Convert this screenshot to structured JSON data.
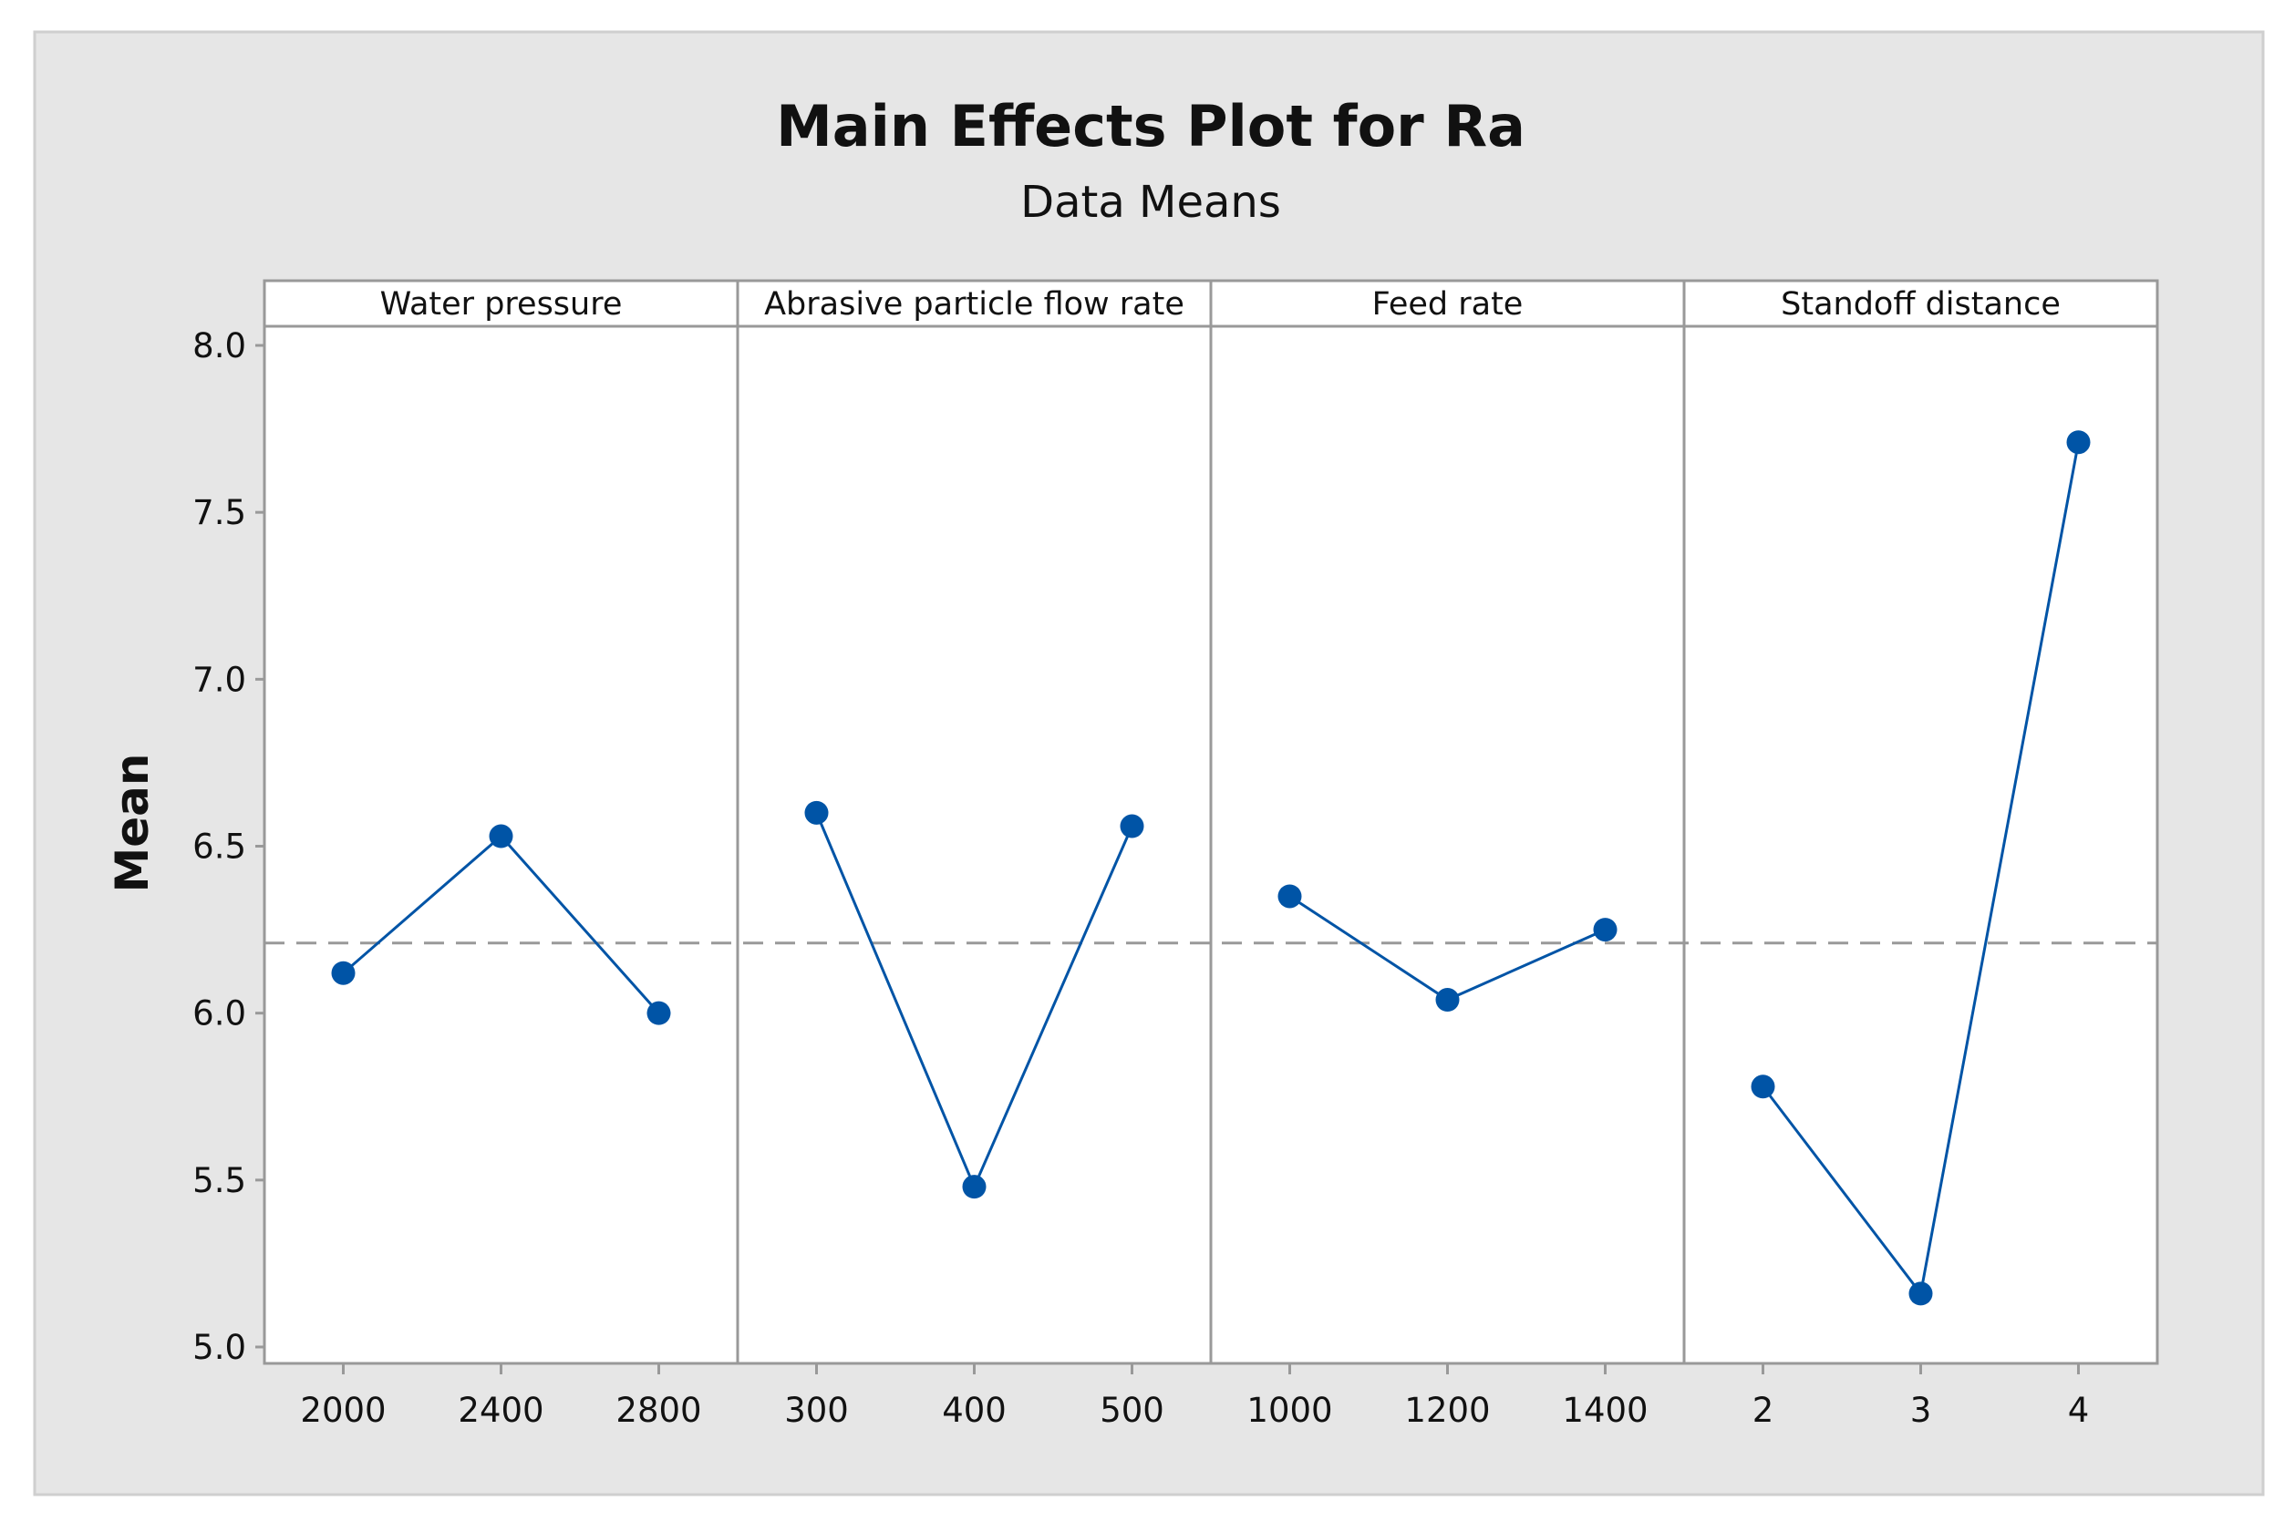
{
  "chart_data": {
    "type": "line",
    "title": "Main Effects Plot for Ra",
    "subtitle": "Data Means",
    "ylabel": "Mean",
    "ylim": [
      5.0,
      8.0
    ],
    "yticks": [
      "5.0",
      "5.5",
      "6.0",
      "6.5",
      "7.0",
      "7.5",
      "8.0"
    ],
    "grid": false,
    "reference_line": {
      "value": 6.21,
      "style": "dashed"
    },
    "panels": [
      {
        "name": "Water pressure",
        "categories": [
          "2000",
          "2400",
          "2800"
        ],
        "values": [
          6.12,
          6.53,
          6.0
        ]
      },
      {
        "name": "Abrasive particle flow rate",
        "categories": [
          "300",
          "400",
          "500"
        ],
        "values": [
          6.6,
          5.48,
          6.56
        ]
      },
      {
        "name": "Feed rate",
        "categories": [
          "1000",
          "1200",
          "1400"
        ],
        "values": [
          6.35,
          6.04,
          6.25
        ]
      },
      {
        "name": "Standoff distance",
        "categories": [
          "2",
          "3",
          "4"
        ],
        "values": [
          5.78,
          5.16,
          7.71
        ]
      }
    ],
    "colors": {
      "series": "#0054a6",
      "reference": "#999999",
      "frame": "#e6e6e6",
      "axis": "#999999"
    }
  }
}
